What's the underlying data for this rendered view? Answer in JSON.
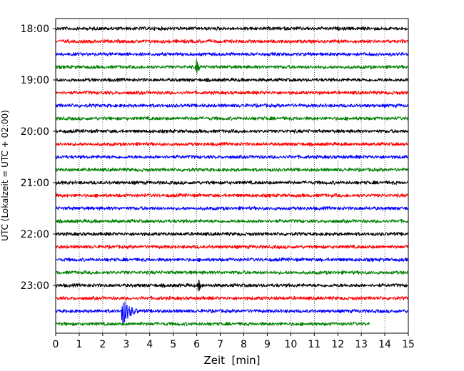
{
  "chart_data": {
    "type": "line",
    "subtype": "helicorder",
    "xlabel": "Zeit  [min]",
    "ylabel": "UTC (Lokalzeit = UTC + 02:00)",
    "xlim": [
      0,
      15
    ],
    "x_ticks": [
      "0",
      "1",
      "2",
      "3",
      "4",
      "5",
      "6",
      "7",
      "8",
      "9",
      "10",
      "11",
      "12",
      "13",
      "14",
      "15"
    ],
    "y_tick_labels": [
      "18:00",
      "19:00",
      "20:00",
      "21:00",
      "22:00",
      "23:00"
    ],
    "minutes_per_line": 15,
    "grid": "vertical dotted",
    "trace_color_cycle": [
      "#000000",
      "#ff0000",
      "#0000ff",
      "#008000"
    ],
    "lines": [
      {
        "start": "18:00",
        "color": "#000000",
        "end_minute": 15
      },
      {
        "start": "18:15",
        "color": "#ff0000",
        "end_minute": 15
      },
      {
        "start": "18:30",
        "color": "#0000ff",
        "end_minute": 15
      },
      {
        "start": "18:45",
        "color": "#008000",
        "end_minute": 15,
        "events": [
          {
            "minute": 6.0,
            "amplitude": "medium"
          }
        ]
      },
      {
        "start": "19:00",
        "color": "#000000",
        "end_minute": 15
      },
      {
        "start": "19:15",
        "color": "#ff0000",
        "end_minute": 15
      },
      {
        "start": "19:30",
        "color": "#0000ff",
        "end_minute": 15
      },
      {
        "start": "19:45",
        "color": "#008000",
        "end_minute": 15
      },
      {
        "start": "20:00",
        "color": "#000000",
        "end_minute": 15
      },
      {
        "start": "20:15",
        "color": "#ff0000",
        "end_minute": 15
      },
      {
        "start": "20:30",
        "color": "#0000ff",
        "end_minute": 15
      },
      {
        "start": "20:45",
        "color": "#008000",
        "end_minute": 15
      },
      {
        "start": "21:00",
        "color": "#000000",
        "end_minute": 15
      },
      {
        "start": "21:15",
        "color": "#ff0000",
        "end_minute": 15
      },
      {
        "start": "21:30",
        "color": "#0000ff",
        "end_minute": 15
      },
      {
        "start": "21:45",
        "color": "#008000",
        "end_minute": 15
      },
      {
        "start": "22:00",
        "color": "#000000",
        "end_minute": 15
      },
      {
        "start": "22:15",
        "color": "#ff0000",
        "end_minute": 15
      },
      {
        "start": "22:30",
        "color": "#0000ff",
        "end_minute": 15
      },
      {
        "start": "22:45",
        "color": "#008000",
        "end_minute": 15
      },
      {
        "start": "23:00",
        "color": "#000000",
        "end_minute": 15,
        "events": [
          {
            "minute": 6.1,
            "amplitude": "small"
          }
        ]
      },
      {
        "start": "23:15",
        "color": "#ff0000",
        "end_minute": 15
      },
      {
        "start": "23:30",
        "color": "#0000ff",
        "end_minute": 15,
        "events": [
          {
            "minute": 2.85,
            "amplitude": "large"
          }
        ]
      },
      {
        "start": "23:45",
        "color": "#008000",
        "end_minute": 13.35
      }
    ]
  }
}
